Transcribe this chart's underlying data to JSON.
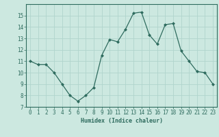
{
  "x": [
    0,
    1,
    2,
    3,
    4,
    5,
    6,
    7,
    8,
    9,
    10,
    11,
    12,
    13,
    14,
    15,
    16,
    17,
    18,
    19,
    20,
    21,
    22,
    23
  ],
  "y": [
    11.0,
    10.7,
    10.7,
    10.0,
    9.0,
    8.0,
    7.5,
    8.0,
    8.7,
    11.5,
    12.9,
    12.7,
    13.8,
    15.2,
    15.3,
    13.3,
    12.5,
    14.2,
    14.3,
    11.9,
    11.0,
    10.1,
    10.0,
    9.0
  ],
  "xlabel": "Humidex (Indice chaleur)",
  "ylim": [
    7,
    16
  ],
  "xlim": [
    -0.5,
    23.5
  ],
  "yticks": [
    7,
    8,
    9,
    10,
    11,
    12,
    13,
    14,
    15
  ],
  "xticks": [
    0,
    1,
    2,
    3,
    4,
    5,
    6,
    7,
    8,
    9,
    10,
    11,
    12,
    13,
    14,
    15,
    16,
    17,
    18,
    19,
    20,
    21,
    22,
    23
  ],
  "xtick_labels": [
    "0",
    "1",
    "2",
    "3",
    "4",
    "5",
    "6",
    "7",
    "8",
    "9",
    "10",
    "11",
    "12",
    "13",
    "14",
    "15",
    "16",
    "17",
    "18",
    "19",
    "20",
    "21",
    "22",
    "23"
  ],
  "line_color": "#2e6b5e",
  "marker": "D",
  "marker_size": 2.0,
  "bg_color": "#cce8e0",
  "grid_color": "#b0d4cc",
  "xlabel_fontsize": 6.0,
  "tick_fontsize": 5.5
}
